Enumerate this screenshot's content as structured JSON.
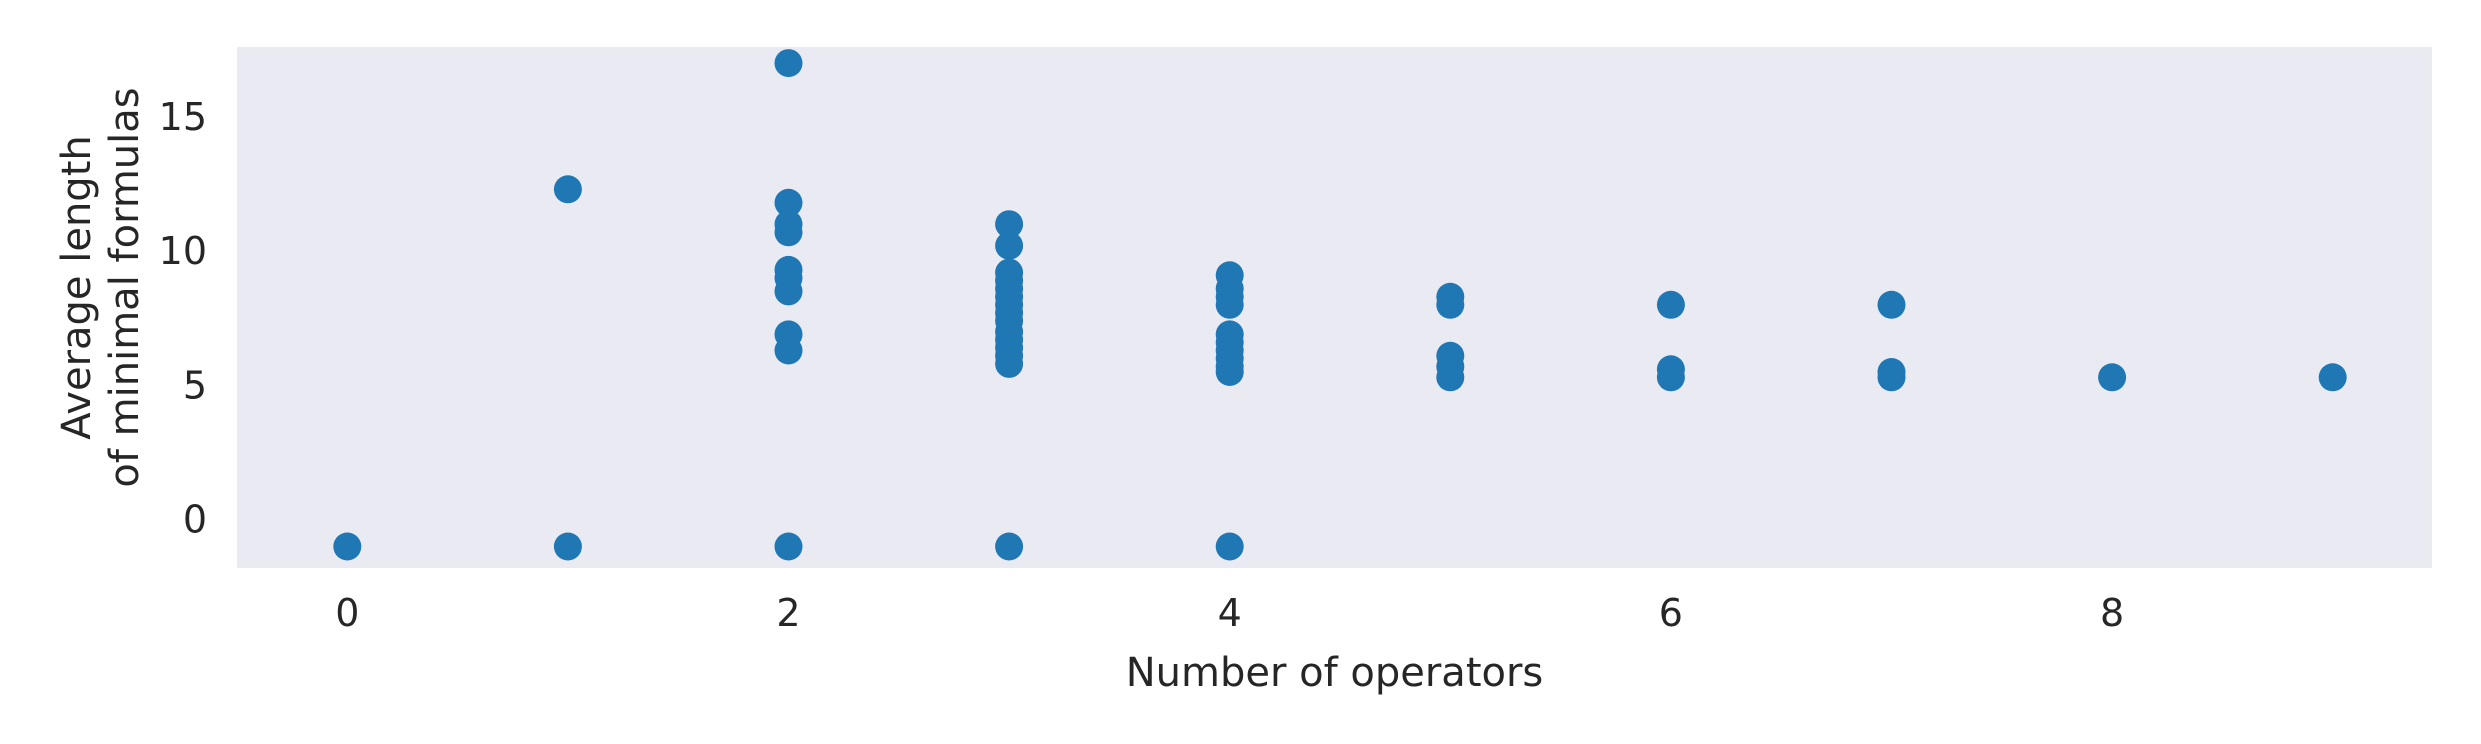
{
  "chart_data": {
    "type": "scatter",
    "title": "",
    "xlabel": "Number of operators",
    "ylabel_lines": [
      "Average length",
      "of minimal formulas"
    ],
    "xlim": [
      -0.5,
      9.45
    ],
    "ylim": [
      -1.8,
      17.6
    ],
    "xticks": [
      0,
      2,
      4,
      6,
      8
    ],
    "yticks": [
      0,
      5,
      10,
      15
    ],
    "grid": false,
    "background": "#eaeaf2",
    "point_color": "#1f77b4",
    "points": [
      [
        0,
        -1.0
      ],
      [
        1,
        12.3
      ],
      [
        1,
        -1.0
      ],
      [
        2,
        17.0
      ],
      [
        2,
        11.8
      ],
      [
        2,
        11.0
      ],
      [
        2,
        10.7
      ],
      [
        2,
        9.3
      ],
      [
        2,
        9.0
      ],
      [
        2,
        8.5
      ],
      [
        2,
        6.9
      ],
      [
        2,
        6.3
      ],
      [
        2,
        -1.0
      ],
      [
        3,
        11.0
      ],
      [
        3,
        10.2
      ],
      [
        3,
        9.2
      ],
      [
        3,
        8.9
      ],
      [
        3,
        8.6
      ],
      [
        3,
        8.3
      ],
      [
        3,
        8.0
      ],
      [
        3,
        7.7
      ],
      [
        3,
        7.4
      ],
      [
        3,
        7.0
      ],
      [
        3,
        6.7
      ],
      [
        3,
        6.4
      ],
      [
        3,
        6.1
      ],
      [
        3,
        5.8
      ],
      [
        3,
        -1.0
      ],
      [
        4,
        9.1
      ],
      [
        4,
        8.6
      ],
      [
        4,
        8.3
      ],
      [
        4,
        8.0
      ],
      [
        4,
        6.9
      ],
      [
        4,
        6.6
      ],
      [
        4,
        6.3
      ],
      [
        4,
        6.0
      ],
      [
        4,
        5.7
      ],
      [
        4,
        5.5
      ],
      [
        4,
        -1.0
      ],
      [
        5,
        8.3
      ],
      [
        5,
        8.0
      ],
      [
        5,
        6.1
      ],
      [
        5,
        5.7
      ],
      [
        5,
        5.3
      ],
      [
        6,
        8.0
      ],
      [
        6,
        5.6
      ],
      [
        6,
        5.3
      ],
      [
        7,
        8.0
      ],
      [
        7,
        5.5
      ],
      [
        7,
        5.3
      ],
      [
        8,
        5.3
      ],
      [
        9,
        5.3
      ]
    ]
  }
}
